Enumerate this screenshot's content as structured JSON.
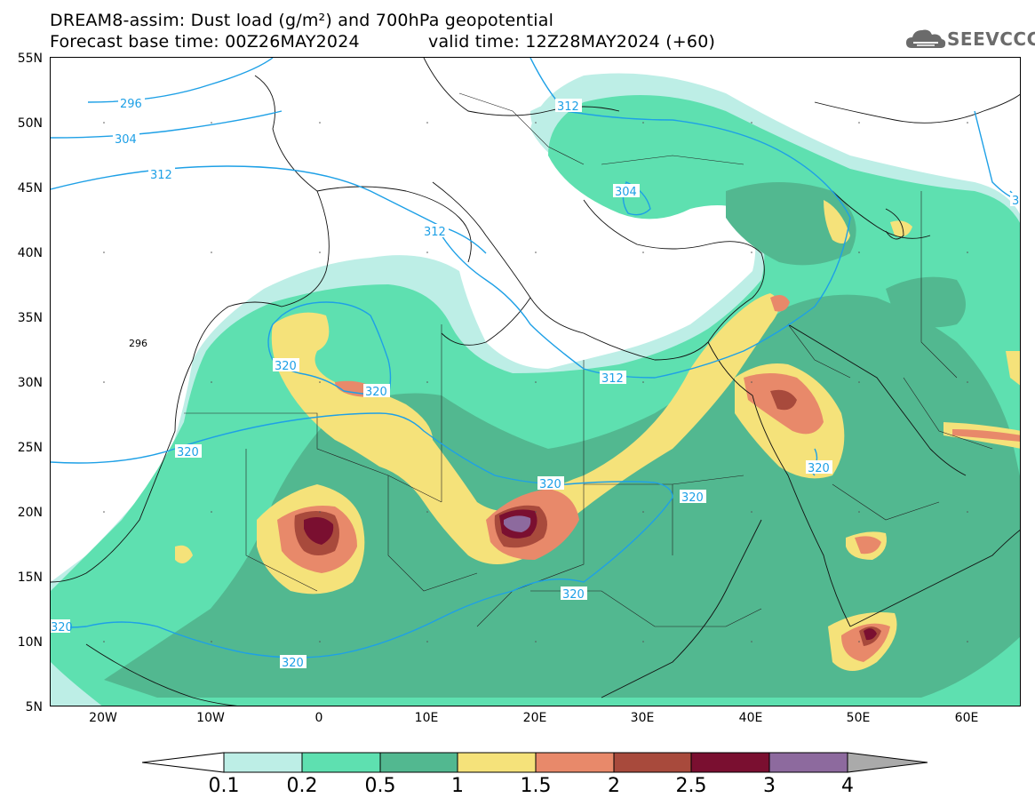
{
  "title": {
    "line1": "DREAM8-assim: Dust load (g/m²) and 700hPa geopotential",
    "line2_base": "Forecast base time: 00Z26MAY2024",
    "line2_valid": "valid time: 12Z28MAY2024 (+60)"
  },
  "logo": {
    "text": "SEEVCCC",
    "icon": "cloud-icon"
  },
  "map": {
    "lat_labels": [
      "55N",
      "50N",
      "45N",
      "40N",
      "35N",
      "30N",
      "25N",
      "20N",
      "15N",
      "10N",
      "5N"
    ],
    "lon_labels": [
      "20W",
      "10W",
      "0",
      "10E",
      "20E",
      "30E",
      "40E",
      "50E",
      "60E"
    ],
    "contour_labels": [
      "296",
      "304",
      "312",
      "312",
      "312",
      "304",
      "320",
      "320",
      "320",
      "320",
      "320",
      "320",
      "320",
      "320",
      "320",
      "3"
    ],
    "stray_label": "296"
  },
  "colorbar": {
    "levels": [
      "0.1",
      "0.2",
      "0.5",
      "1",
      "1.5",
      "2",
      "2.5",
      "3",
      "4"
    ],
    "colors": [
      "#ffffff",
      "#bdeee6",
      "#5ee0b0",
      "#52b890",
      "#f5e27a",
      "#e8896a",
      "#a84a3c",
      "#7a0f30",
      "#8d6a9e",
      "#aaaaaa"
    ]
  }
}
